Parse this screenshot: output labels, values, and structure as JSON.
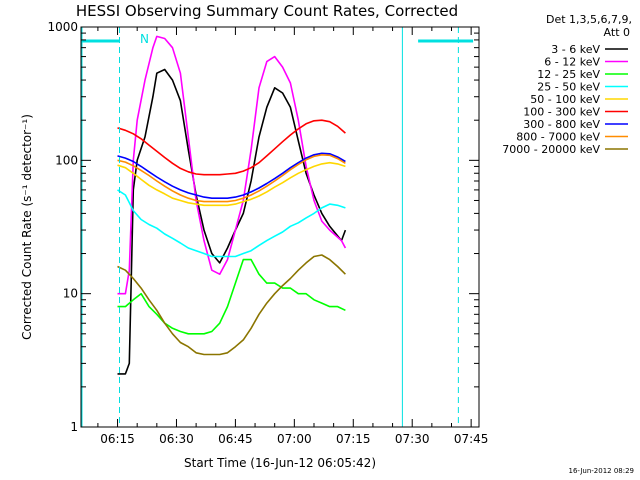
{
  "chart_data": {
    "type": "line",
    "title": "HESSI Observing Summary Count Rates, Corrected",
    "xlabel": "Start Time (16-Jun-12 06:05:42)",
    "ylabel": "Corrected Count Rate (s⁻¹ detector⁻¹)",
    "y_scale": "log",
    "ylim": [
      1,
      1000
    ],
    "y_ticks": [
      1,
      10,
      100,
      1000
    ],
    "y_tick_labels": [
      "1",
      "10",
      "100",
      "1000"
    ],
    "xlim": [
      "06:05:42",
      "07:47:00"
    ],
    "x_ticks": [
      "06:15",
      "06:30",
      "06:45",
      "07:00",
      "07:15",
      "07:30",
      "07:45"
    ],
    "legend_header": [
      "Det 1,3,5,6,7,9,",
      "Att 0"
    ],
    "legend_position": "outside-right",
    "grid": false,
    "series": [
      {
        "name": "3 - 6 keV",
        "color": "#000000",
        "x": [
          "06:15",
          "06:17",
          "06:18",
          "06:19",
          "06:20",
          "06:22",
          "06:24",
          "06:25",
          "06:27",
          "06:29",
          "06:31",
          "06:33",
          "06:35",
          "06:37",
          "06:39",
          "06:41",
          "06:43",
          "06:45",
          "06:47",
          "06:49",
          "06:51",
          "06:53",
          "06:55",
          "06:57",
          "06:59",
          "07:01",
          "07:03",
          "07:05",
          "07:07",
          "07:09",
          "07:12",
          "07:13"
        ],
        "y": [
          2.5,
          2.5,
          3,
          60,
          100,
          150,
          300,
          450,
          480,
          400,
          280,
          120,
          55,
          30,
          20,
          17,
          22,
          30,
          40,
          70,
          150,
          250,
          350,
          320,
          250,
          140,
          80,
          55,
          40,
          32,
          25,
          30
        ]
      },
      {
        "name": "6 - 12 keV",
        "color": "#ff00ff",
        "x": [
          "06:15",
          "06:17",
          "06:18",
          "06:19",
          "06:20",
          "06:22",
          "06:24",
          "06:25",
          "06:27",
          "06:29",
          "06:31",
          "06:33",
          "06:35",
          "06:37",
          "06:39",
          "06:41",
          "06:43",
          "06:45",
          "06:47",
          "06:49",
          "06:51",
          "06:53",
          "06:55",
          "06:57",
          "06:59",
          "07:01",
          "07:03",
          "07:05",
          "07:07",
          "07:09",
          "07:12",
          "07:13"
        ],
        "y": [
          10,
          10,
          15,
          100,
          200,
          400,
          700,
          850,
          820,
          700,
          450,
          150,
          50,
          25,
          15,
          14,
          18,
          30,
          50,
          120,
          350,
          550,
          600,
          500,
          380,
          200,
          90,
          50,
          35,
          30,
          25,
          22
        ]
      },
      {
        "name": "12 - 25 keV",
        "color": "#00ff00",
        "x": [
          "06:15",
          "06:17",
          "06:19",
          "06:21",
          "06:23",
          "06:25",
          "06:27",
          "06:29",
          "06:31",
          "06:33",
          "06:35",
          "06:37",
          "06:39",
          "06:41",
          "06:43",
          "06:45",
          "06:47",
          "06:49",
          "06:51",
          "06:53",
          "06:55",
          "06:57",
          "06:59",
          "07:01",
          "07:03",
          "07:05",
          "07:07",
          "07:09",
          "07:11",
          "07:13"
        ],
        "y": [
          8,
          8,
          9,
          10,
          8,
          7,
          6,
          5.5,
          5.2,
          5,
          5,
          5,
          5.2,
          6,
          8,
          12,
          18,
          18,
          14,
          12,
          12,
          11,
          11,
          10,
          10,
          9,
          8.5,
          8,
          8,
          7.5
        ]
      },
      {
        "name": "25 - 50 keV",
        "color": "#00ffff",
        "x": [
          "06:15",
          "06:17",
          "06:19",
          "06:21",
          "06:23",
          "06:25",
          "06:27",
          "06:29",
          "06:31",
          "06:33",
          "06:35",
          "06:37",
          "06:39",
          "06:41",
          "06:43",
          "06:45",
          "06:47",
          "06:49",
          "06:51",
          "06:53",
          "06:55",
          "06:57",
          "06:59",
          "07:01",
          "07:03",
          "07:05",
          "07:07",
          "07:09",
          "07:11",
          "07:13"
        ],
        "y": [
          60,
          55,
          42,
          36,
          33,
          31,
          28,
          26,
          24,
          22,
          21,
          20,
          19,
          19,
          19,
          19,
          20,
          21,
          23,
          25,
          27,
          29,
          32,
          34,
          37,
          40,
          44,
          47,
          46,
          44
        ]
      },
      {
        "name": "50 - 100 keV",
        "color": "#ffd700",
        "x": [
          "06:15",
          "06:17",
          "06:19",
          "06:21",
          "06:23",
          "06:25",
          "06:27",
          "06:29",
          "06:31",
          "06:33",
          "06:35",
          "06:37",
          "06:39",
          "06:41",
          "06:43",
          "06:45",
          "06:47",
          "06:49",
          "06:51",
          "06:53",
          "06:55",
          "06:57",
          "06:59",
          "07:01",
          "07:03",
          "07:05",
          "07:07",
          "07:09",
          "07:11",
          "07:13"
        ],
        "y": [
          92,
          88,
          80,
          72,
          65,
          60,
          56,
          52,
          50,
          48,
          47,
          46,
          46,
          46,
          46,
          47,
          49,
          51,
          54,
          58,
          63,
          68,
          74,
          80,
          85,
          90,
          94,
          96,
          94,
          90
        ]
      },
      {
        "name": "100 - 300 keV",
        "color": "#ff0000",
        "x": [
          "06:15",
          "06:17",
          "06:19",
          "06:21",
          "06:23",
          "06:25",
          "06:27",
          "06:29",
          "06:31",
          "06:33",
          "06:35",
          "06:37",
          "06:39",
          "06:41",
          "06:43",
          "06:45",
          "06:47",
          "06:49",
          "06:51",
          "06:53",
          "06:55",
          "06:57",
          "06:59",
          "07:01",
          "07:03",
          "07:05",
          "07:07",
          "07:09",
          "07:11",
          "07:13"
        ],
        "y": [
          175,
          168,
          158,
          145,
          130,
          117,
          105,
          95,
          87,
          82,
          79,
          78,
          78,
          78,
          79,
          80,
          83,
          88,
          96,
          108,
          122,
          138,
          155,
          172,
          188,
          198,
          200,
          195,
          180,
          160
        ]
      },
      {
        "name": "300 - 800 keV",
        "color": "#0000ff",
        "x": [
          "06:15",
          "06:17",
          "06:19",
          "06:21",
          "06:23",
          "06:25",
          "06:27",
          "06:29",
          "06:31",
          "06:33",
          "06:35",
          "06:37",
          "06:39",
          "06:41",
          "06:43",
          "06:45",
          "06:47",
          "06:49",
          "06:51",
          "06:53",
          "06:55",
          "06:57",
          "06:59",
          "07:01",
          "07:03",
          "07:05",
          "07:07",
          "07:09",
          "07:11",
          "07:13"
        ],
        "y": [
          108,
          104,
          98,
          90,
          82,
          75,
          69,
          64,
          60,
          57,
          55,
          53,
          52,
          52,
          52,
          53,
          55,
          58,
          62,
          67,
          73,
          80,
          88,
          96,
          104,
          110,
          113,
          112,
          106,
          98
        ]
      },
      {
        "name": "800 - 7000 keV",
        "color": "#ff8c00",
        "x": [
          "06:15",
          "06:17",
          "06:19",
          "06:21",
          "06:23",
          "06:25",
          "06:27",
          "06:29",
          "06:31",
          "06:33",
          "06:35",
          "06:37",
          "06:39",
          "06:41",
          "06:43",
          "06:45",
          "06:47",
          "06:49",
          "06:51",
          "06:53",
          "06:55",
          "06:57",
          "06:59",
          "07:01",
          "07:03",
          "07:05",
          "07:07",
          "07:09",
          "07:11",
          "07:13"
        ],
        "y": [
          100,
          97,
          91,
          84,
          77,
          70,
          64,
          59,
          55,
          52,
          50,
          49,
          49,
          49,
          49,
          50,
          52,
          55,
          59,
          64,
          70,
          77,
          85,
          93,
          101,
          107,
          110,
          109,
          103,
          95
        ]
      },
      {
        "name": "7000 - 20000 keV",
        "color": "#8b7500",
        "x": [
          "06:15",
          "06:17",
          "06:19",
          "06:21",
          "06:23",
          "06:25",
          "06:27",
          "06:29",
          "06:31",
          "06:33",
          "06:35",
          "06:37",
          "06:39",
          "06:41",
          "06:43",
          "06:45",
          "06:47",
          "06:49",
          "06:51",
          "06:53",
          "06:55",
          "06:57",
          "06:59",
          "07:01",
          "07:03",
          "07:05",
          "07:07",
          "07:09",
          "07:11",
          "07:13"
        ],
        "y": [
          16,
          15,
          13,
          11,
          9,
          7.5,
          6,
          5,
          4.3,
          4,
          3.6,
          3.5,
          3.5,
          3.5,
          3.6,
          4,
          4.5,
          5.5,
          7,
          8.5,
          10,
          11.5,
          13,
          15,
          17,
          19,
          19.5,
          18,
          16,
          14
        ]
      }
    ],
    "annotations": {
      "n_marker": "N"
    },
    "timestamp": "16-Jun-2012 08:29"
  }
}
